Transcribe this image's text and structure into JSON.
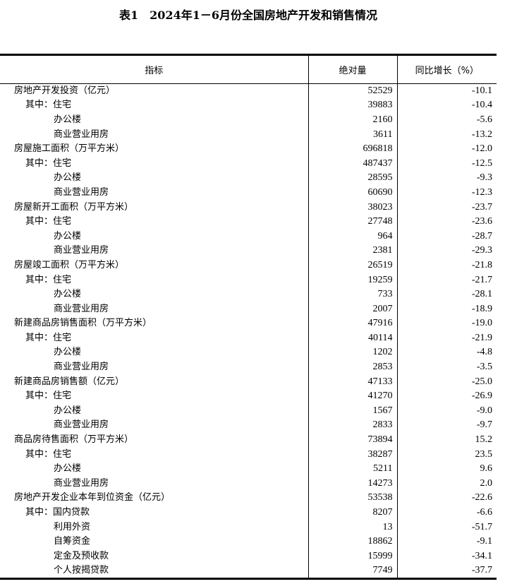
{
  "title": "表1　2024年1－6月份全国房地产开发和销售情况",
  "headers": {
    "indicator": "指标",
    "absolute": "绝对量",
    "yoy": "同比增长（%）"
  },
  "rows": [
    {
      "label": "房地产开发投资（亿元）",
      "level": 0,
      "value": "52529",
      "yoy": "-10.1"
    },
    {
      "label": "其中：住宅",
      "level": 1,
      "value": "39883",
      "yoy": "-10.4"
    },
    {
      "label": "办公楼",
      "level": 2,
      "value": "2160",
      "yoy": "-5.6"
    },
    {
      "label": "商业营业用房",
      "level": 2,
      "value": "3611",
      "yoy": "-13.2"
    },
    {
      "label": "房屋施工面积（万平方米）",
      "level": 0,
      "value": "696818",
      "yoy": "-12.0"
    },
    {
      "label": "其中：住宅",
      "level": 1,
      "value": "487437",
      "yoy": "-12.5"
    },
    {
      "label": "办公楼",
      "level": 2,
      "value": "28595",
      "yoy": "-9.3"
    },
    {
      "label": "商业营业用房",
      "level": 2,
      "value": "60690",
      "yoy": "-12.3"
    },
    {
      "label": "房屋新开工面积（万平方米）",
      "level": 0,
      "value": "38023",
      "yoy": "-23.7"
    },
    {
      "label": "其中：住宅",
      "level": 1,
      "value": "27748",
      "yoy": "-23.6"
    },
    {
      "label": "办公楼",
      "level": 2,
      "value": "964",
      "yoy": "-28.7"
    },
    {
      "label": "商业营业用房",
      "level": 2,
      "value": "2381",
      "yoy": "-29.3"
    },
    {
      "label": "房屋竣工面积（万平方米）",
      "level": 0,
      "value": "26519",
      "yoy": "-21.8"
    },
    {
      "label": "其中：住宅",
      "level": 1,
      "value": "19259",
      "yoy": "-21.7"
    },
    {
      "label": "办公楼",
      "level": 2,
      "value": "733",
      "yoy": "-28.1"
    },
    {
      "label": "商业营业用房",
      "level": 2,
      "value": "2007",
      "yoy": "-18.9"
    },
    {
      "label": "新建商品房销售面积（万平方米）",
      "level": 0,
      "value": "47916",
      "yoy": "-19.0"
    },
    {
      "label": "其中：住宅",
      "level": 1,
      "value": "40114",
      "yoy": "-21.9"
    },
    {
      "label": "办公楼",
      "level": 2,
      "value": "1202",
      "yoy": "-4.8"
    },
    {
      "label": "商业营业用房",
      "level": 2,
      "value": "2853",
      "yoy": "-3.5"
    },
    {
      "label": "新建商品房销售额（亿元）",
      "level": 0,
      "value": "47133",
      "yoy": "-25.0"
    },
    {
      "label": "其中：住宅",
      "level": 1,
      "value": "41270",
      "yoy": "-26.9"
    },
    {
      "label": "办公楼",
      "level": 2,
      "value": "1567",
      "yoy": "-9.0"
    },
    {
      "label": "商业营业用房",
      "level": 2,
      "value": "2833",
      "yoy": "-9.7"
    },
    {
      "label": "商品房待售面积（万平方米）",
      "level": 0,
      "value": "73894",
      "yoy": "15.2"
    },
    {
      "label": "其中：住宅",
      "level": 1,
      "value": "38287",
      "yoy": "23.5"
    },
    {
      "label": "办公楼",
      "level": 2,
      "value": "5211",
      "yoy": "9.6"
    },
    {
      "label": "商业营业用房",
      "level": 2,
      "value": "14273",
      "yoy": "2.0"
    },
    {
      "label": "房地产开发企业本年到位资金（亿元）",
      "level": 0,
      "value": "53538",
      "yoy": "-22.6"
    },
    {
      "label": "其中：国内贷款",
      "level": 1,
      "value": "8207",
      "yoy": "-6.6"
    },
    {
      "label": "利用外资",
      "level": 2,
      "value": "13",
      "yoy": "-51.7"
    },
    {
      "label": "自筹资金",
      "level": 2,
      "value": "18862",
      "yoy": "-9.1"
    },
    {
      "label": "定金及预收款",
      "level": 2,
      "value": "15999",
      "yoy": "-34.1"
    },
    {
      "label": "个人按揭贷款",
      "level": 2,
      "value": "7749",
      "yoy": "-37.7"
    }
  ]
}
